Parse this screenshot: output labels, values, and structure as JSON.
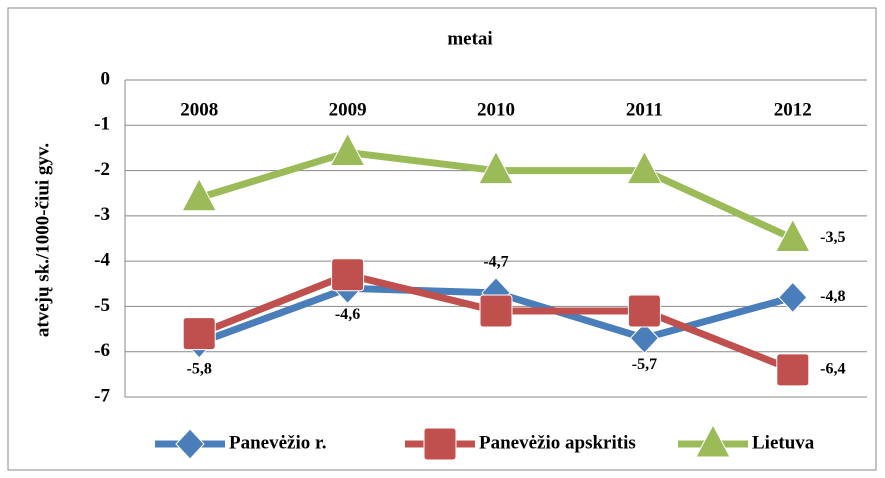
{
  "chart_data": {
    "type": "line",
    "title": "metai",
    "y_label": "atvejų sk./1000-čiui gyv.",
    "categories": [
      "2008",
      "2009",
      "2010",
      "2011",
      "2012"
    ],
    "series": [
      {
        "name": "Panevėžio r.",
        "color": "#4a7ebb",
        "marker": "diamond",
        "values": [
          -5.8,
          -4.6,
          -4.7,
          -5.7,
          -4.8
        ],
        "value_labels": [
          "-5,8",
          "-4,6",
          "-4,7",
          "-5,7",
          "-4,8"
        ]
      },
      {
        "name": "Panevėžio apskritis",
        "color": "#c0504d",
        "marker": "square",
        "values": [
          -5.6,
          -4.3,
          -5.1,
          -5.1,
          -6.4
        ],
        "value_labels": [
          null,
          null,
          null,
          null,
          "-6,4"
        ]
      },
      {
        "name": "Lietuva",
        "color": "#9bbb59",
        "marker": "triangle",
        "values": [
          -2.6,
          -1.6,
          -2.0,
          -2.0,
          -3.5
        ],
        "value_labels": [
          null,
          null,
          null,
          null,
          "-3,5"
        ]
      }
    ],
    "ylim": [
      -7,
      0
    ],
    "yticks": [
      0,
      -1,
      -2,
      -3,
      -4,
      -5,
      -6,
      -7
    ],
    "grid": true,
    "legend": "bottom"
  }
}
